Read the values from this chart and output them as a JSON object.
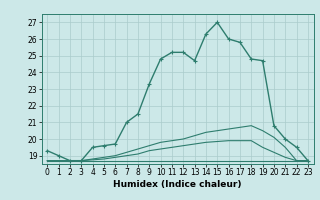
{
  "x_values": [
    0,
    1,
    2,
    3,
    4,
    5,
    6,
    7,
    8,
    9,
    10,
    11,
    12,
    13,
    14,
    15,
    16,
    17,
    18,
    19,
    20,
    21,
    22,
    23
  ],
  "line1": [
    19.3,
    19.0,
    18.7,
    18.7,
    19.5,
    19.6,
    19.7,
    21.0,
    21.5,
    23.3,
    24.8,
    25.2,
    25.2,
    24.7,
    26.3,
    27.0,
    26.0,
    25.8,
    24.8,
    24.7,
    20.8,
    20.0,
    19.5,
    18.7
  ],
  "line2": [
    18.7,
    18.7,
    18.7,
    18.7,
    18.7,
    18.7,
    18.7,
    18.7,
    18.7,
    18.7,
    18.7,
    18.7,
    18.7,
    18.7,
    18.7,
    18.7,
    18.7,
    18.7,
    18.7,
    18.7,
    18.7,
    18.7,
    18.7,
    18.7
  ],
  "line3": [
    18.7,
    18.7,
    18.7,
    18.7,
    18.8,
    18.9,
    19.0,
    19.2,
    19.4,
    19.6,
    19.8,
    19.9,
    20.0,
    20.2,
    20.4,
    20.5,
    20.6,
    20.7,
    20.8,
    20.5,
    20.1,
    19.5,
    18.7,
    18.7
  ],
  "line4": [
    18.7,
    18.7,
    18.7,
    18.7,
    18.75,
    18.8,
    18.9,
    19.0,
    19.1,
    19.3,
    19.4,
    19.5,
    19.6,
    19.7,
    19.8,
    19.85,
    19.9,
    19.9,
    19.9,
    19.5,
    19.2,
    18.9,
    18.7,
    18.7
  ],
  "line_color": "#2e7d6e",
  "bg_color": "#cce8e8",
  "grid_color": "#aacccc",
  "xlabel": "Humidex (Indice chaleur)",
  "ylim": [
    18.5,
    27.5
  ],
  "xlim": [
    -0.5,
    23.5
  ],
  "yticks": [
    19,
    20,
    21,
    22,
    23,
    24,
    25,
    26,
    27
  ],
  "xticks": [
    0,
    1,
    2,
    3,
    4,
    5,
    6,
    7,
    8,
    9,
    10,
    11,
    12,
    13,
    14,
    15,
    16,
    17,
    18,
    19,
    20,
    21,
    22,
    23
  ]
}
